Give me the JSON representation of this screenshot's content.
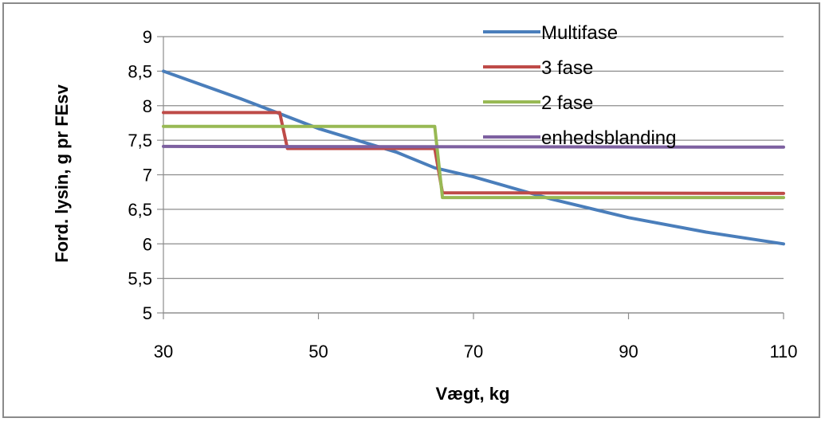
{
  "chart_data": {
    "type": "line",
    "title": "",
    "xlabel": "Vægt, kg",
    "ylabel": "Ford. lysin, g pr FEsv",
    "xlim": [
      30,
      110
    ],
    "ylim": [
      5,
      9
    ],
    "x_ticks": [
      "30",
      "50",
      "70",
      "90",
      "110"
    ],
    "y_ticks": [
      "5",
      "5,5",
      "6",
      "6,5",
      "7",
      "7,5",
      "8",
      "8,5",
      "9"
    ],
    "grid": "horizontal",
    "legend_position": "top-right",
    "series": [
      {
        "name": "Multifase",
        "color": "#4A7EBB",
        "points": [
          [
            30,
            8.5
          ],
          [
            40,
            8.1
          ],
          [
            50,
            7.67
          ],
          [
            60,
            7.33
          ],
          [
            65,
            7.1
          ],
          [
            70,
            6.97
          ],
          [
            80,
            6.65
          ],
          [
            90,
            6.38
          ],
          [
            100,
            6.17
          ],
          [
            110,
            6.0
          ]
        ]
      },
      {
        "name": "3 fase",
        "color": "#BE4B48",
        "points": [
          [
            30,
            7.9
          ],
          [
            45,
            7.9
          ],
          [
            46,
            7.38
          ],
          [
            65,
            7.38
          ],
          [
            66,
            6.74
          ],
          [
            110,
            6.73
          ]
        ]
      },
      {
        "name": "2 fase",
        "color": "#98B954",
        "points": [
          [
            30,
            7.7
          ],
          [
            65,
            7.7
          ],
          [
            66,
            6.67
          ],
          [
            110,
            6.67
          ]
        ]
      },
      {
        "name": "enhedsblanding",
        "color": "#7D60A0",
        "points": [
          [
            30,
            7.41
          ],
          [
            110,
            7.4
          ]
        ]
      }
    ]
  }
}
